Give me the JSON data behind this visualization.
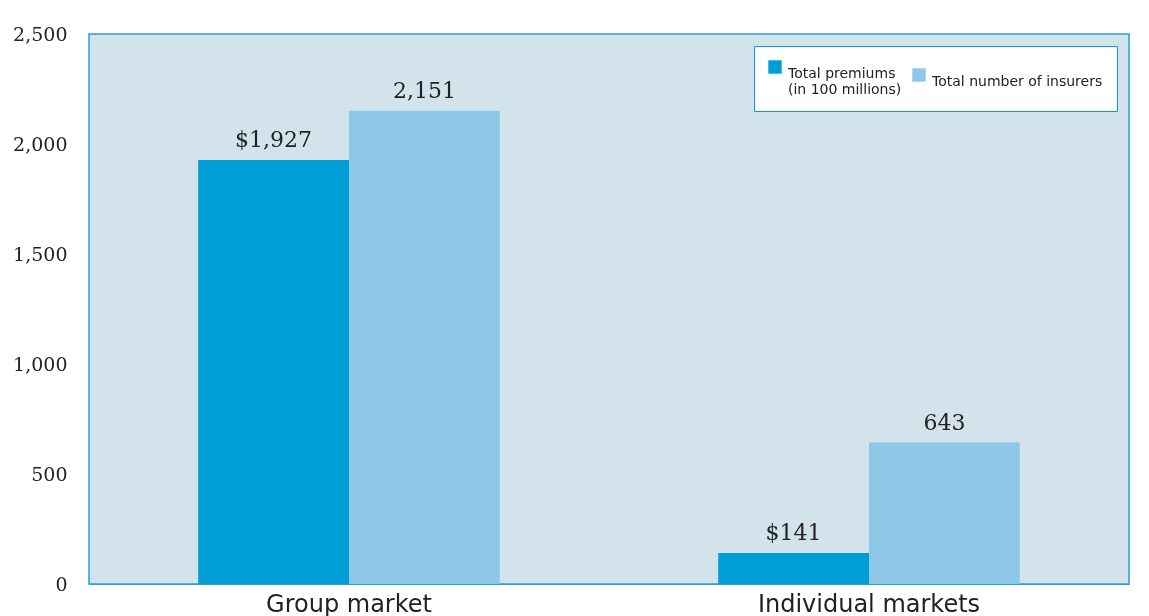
{
  "chart_data": {
    "type": "bar",
    "categories": [
      "Group market",
      "Individual markets"
    ],
    "series": [
      {
        "name": "Total premiums\n(in 100 millions)",
        "color": "#009dd6",
        "values": [
          1927,
          141
        ],
        "value_labels": [
          "$1,927",
          "$141"
        ]
      },
      {
        "name": "Total number of insurers",
        "color": "#8ec8e8",
        "values": [
          2151,
          643
        ],
        "value_labels": [
          "2,151",
          "643"
        ]
      }
    ],
    "ylim": [
      0,
      2500
    ],
    "yticks": [
      0,
      500,
      {
        "value": 1000,
        "label": "1,000"
      },
      {
        "value": 1500,
        "label": "1,500"
      },
      {
        "value": 2000,
        "label": "2,000"
      },
      {
        "value": 2500,
        "label": "2,500"
      }
    ],
    "grid": false,
    "legend": "top right"
  }
}
